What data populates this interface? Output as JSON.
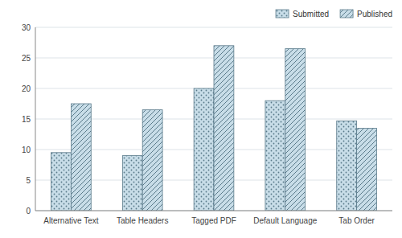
{
  "chart_data": {
    "type": "bar",
    "categories": [
      "Alternative Text",
      "Table Headers",
      "Tagged PDF",
      "Default Language",
      "Tab Order"
    ],
    "series": [
      {
        "name": "Submitted",
        "color": "#c8dde8",
        "values": [
          9.5,
          9.0,
          20.0,
          18.0,
          14.7
        ]
      },
      {
        "name": "Published",
        "color": "#c8dde8",
        "values": [
          17.5,
          16.5,
          27.0,
          26.5,
          13.5
        ]
      }
    ],
    "ylim": [
      0,
      30
    ],
    "yticks": [
      0,
      5,
      10,
      15,
      20,
      25,
      30
    ],
    "grid": true,
    "legend": "upper right"
  }
}
